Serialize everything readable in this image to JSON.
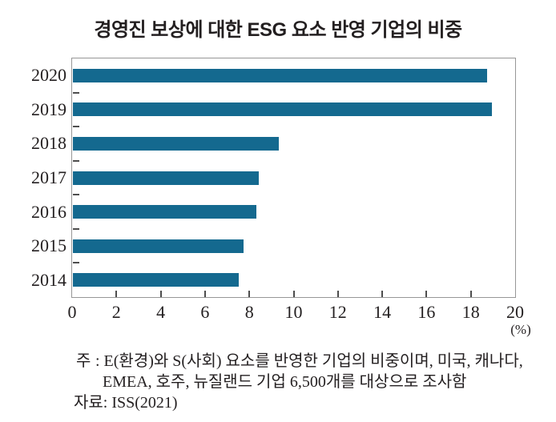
{
  "chart_data": {
    "type": "bar",
    "orientation": "horizontal",
    "title": "경영진 보상에 대한 ESG 요소 반영 기업의 비중",
    "categories": [
      "2020",
      "2019",
      "2018",
      "2017",
      "2016",
      "2015",
      "2014"
    ],
    "values": [
      18.7,
      18.9,
      9.3,
      8.4,
      8.3,
      7.7,
      7.5
    ],
    "xlabel": "",
    "ylabel": "",
    "unit_label": "(%)",
    "xlim": [
      0,
      20
    ],
    "x_ticks": [
      0,
      2,
      4,
      6,
      8,
      10,
      12,
      14,
      16,
      18,
      20
    ],
    "grid": false,
    "legend": "none",
    "bar_color": "#14698F",
    "frame_color": "#979797",
    "tick_color": "#4d4d4d",
    "text_color": "#231f20"
  },
  "footnote": {
    "label": "주",
    "line1": ": E(환경)와 S(사회) 요소를 반영한 기업의 비중이며, 미국, 캐나다,",
    "line2": "EMEA, 호주, 뉴질랜드 기업 6,500개를 대상으로 조사함",
    "source": "자료: ISS(2021)"
  }
}
